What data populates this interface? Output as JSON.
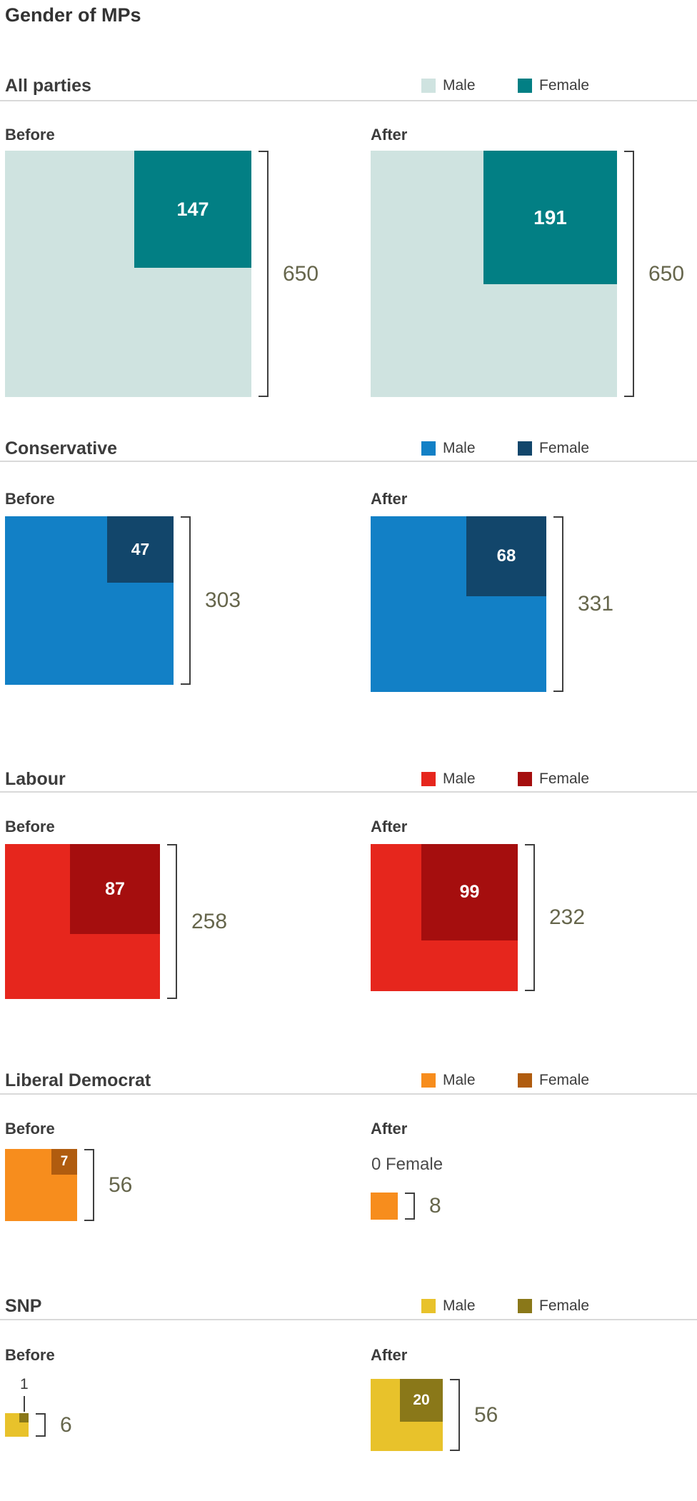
{
  "chart_data": {
    "type": "waffle",
    "title": "Gender of MPs",
    "legend": {
      "male_label": "Male",
      "female_label": "Female"
    },
    "comparison_labels": {
      "before": "Before",
      "after": "After"
    },
    "colors": {
      "bracket": "#3f3f3f",
      "total_label": "#66664c",
      "divider": "#d9d9d9",
      "heading_text": "#3c3c3c",
      "note_text": "#4a4a4a",
      "value_text": "#ffffff",
      "title_text": "#333333"
    },
    "sections": [
      {
        "party": "All parties",
        "male_color": "#cfe3e0",
        "female_color": "#027f84",
        "before": {
          "total": 650,
          "female": 147
        },
        "after": {
          "total": 650,
          "female": 191
        }
      },
      {
        "party": "Conservative",
        "male_color": "#1280c6",
        "female_color": "#12466b",
        "before": {
          "total": 303,
          "female": 47
        },
        "after": {
          "total": 331,
          "female": 68
        }
      },
      {
        "party": "Labour",
        "male_color": "#e6261d",
        "female_color": "#a50e0e",
        "before": {
          "total": 258,
          "female": 87
        },
        "after": {
          "total": 232,
          "female": 99
        }
      },
      {
        "party": "Liberal Democrat",
        "male_color": "#f78d1d",
        "female_color": "#b05c0f",
        "before": {
          "total": 56,
          "female": 7
        },
        "after": {
          "total": 8,
          "female": 0,
          "note": "0 Female"
        }
      },
      {
        "party": "SNP",
        "male_color": "#e8c22b",
        "female_color": "#8a7819",
        "before": {
          "total": 6,
          "female": 1,
          "callout": "1"
        },
        "after": {
          "total": 56,
          "female": 20
        }
      }
    ]
  }
}
